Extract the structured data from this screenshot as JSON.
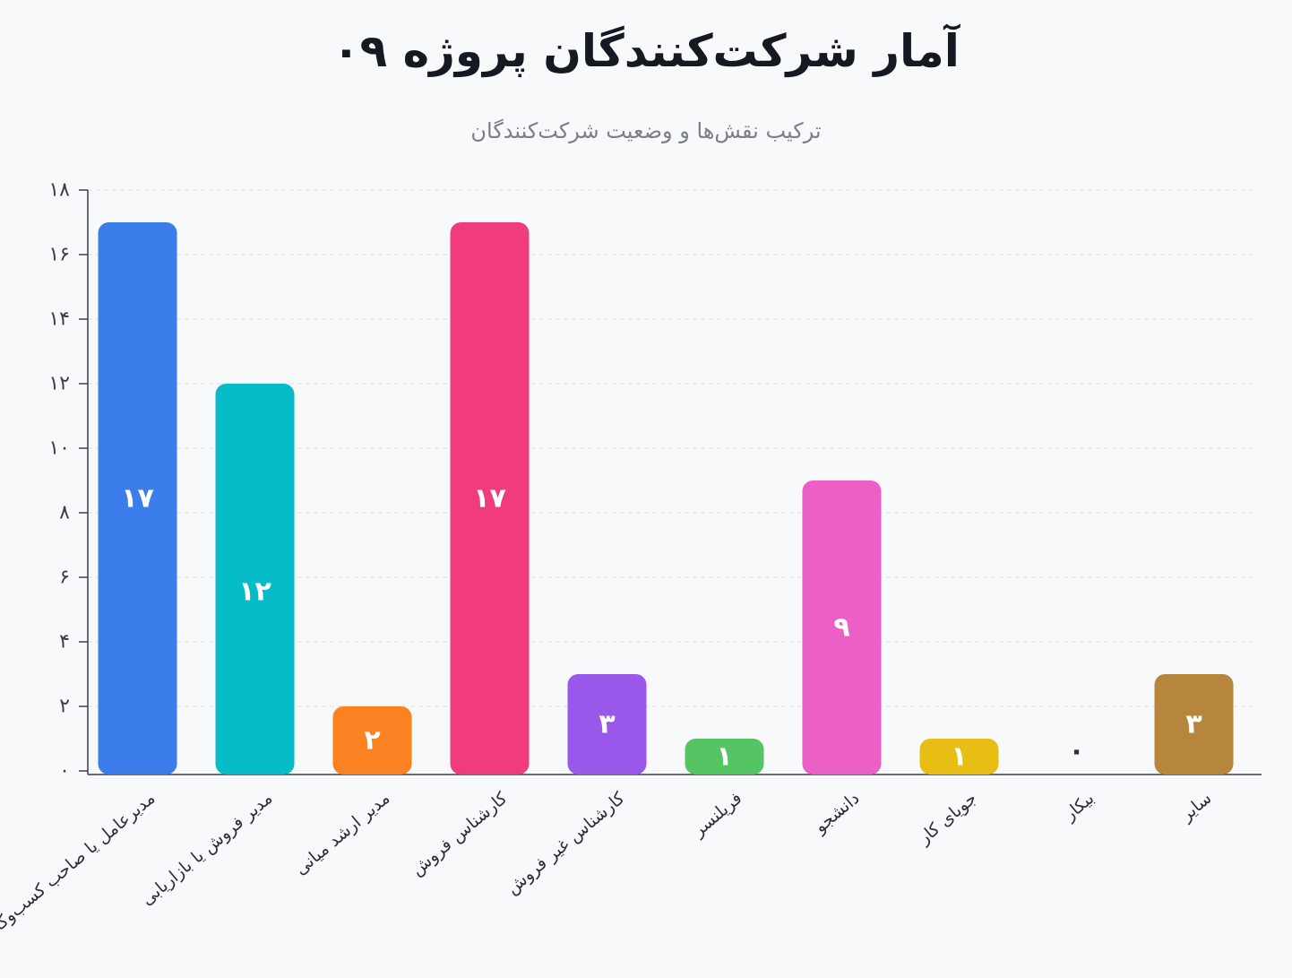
{
  "chart_data": {
    "type": "bar",
    "title": "آمار شرکت‌کنندگان پروژه ۰۹",
    "subtitle": "ترکیب نقش‌ها و وضعیت شرکت‌کنندگان",
    "xlabel": "",
    "ylabel": "",
    "categories": [
      "مدیرعامل یا صاحب کسب‌وکار",
      "مدیر فروش یا بازاریابی",
      "مدیر ارشد میانی",
      "کارشناس فروش",
      "کارشناس غیر فروش",
      "فریلنسر",
      "دانشجو",
      "جویای کار",
      "بیکار",
      "سایر"
    ],
    "values": [
      17,
      12,
      2,
      17,
      3,
      1,
      9,
      1,
      0,
      3
    ],
    "value_labels": [
      "۱۷",
      "۱۲",
      "۲",
      "۱۷",
      "۳",
      "۱",
      "۹",
      "۱",
      "۰",
      "۳"
    ],
    "colors": [
      "#3b7deb",
      "#06bcc8",
      "#fb8222",
      "#f03c7d",
      "#9958e9",
      "#55c462",
      "#ec5fc7",
      "#e8be15",
      "#9aa0a6",
      "#b6863d"
    ],
    "ylim": [
      0,
      18
    ],
    "yticks": [
      0,
      2,
      4,
      6,
      8,
      10,
      12,
      14,
      16,
      18
    ],
    "ytick_labels": [
      "۰",
      "۲",
      "۴",
      "۶",
      "۸",
      "۱۰",
      "۱۲",
      "۱۴",
      "۱۶",
      "۱۸"
    ],
    "grid": true,
    "legend": "none"
  }
}
